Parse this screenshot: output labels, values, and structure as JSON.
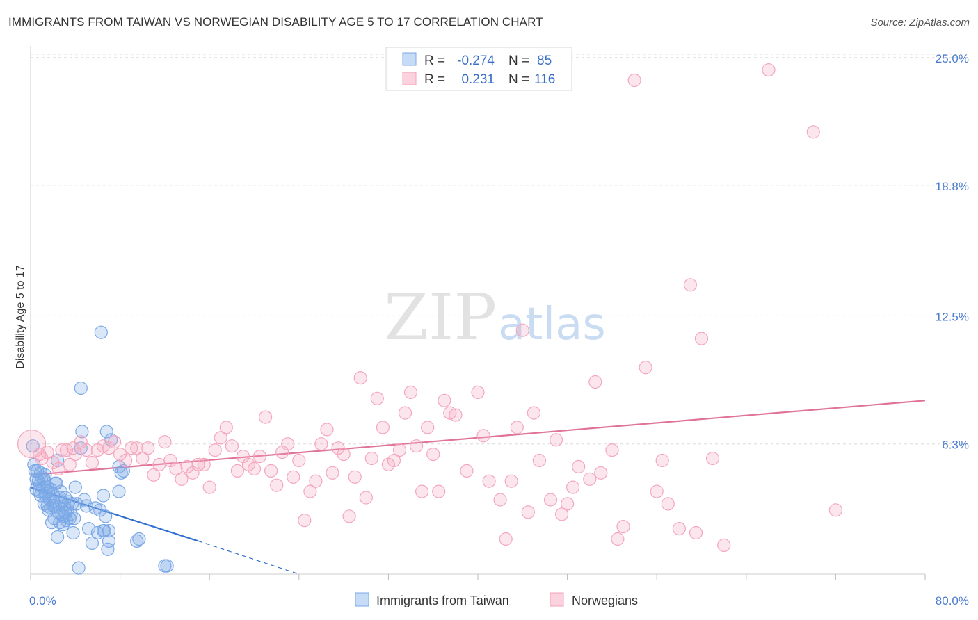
{
  "header": {
    "title": "IMMIGRANTS FROM TAIWAN VS NORWEGIAN DISABILITY AGE 5 TO 17 CORRELATION CHART",
    "source": "Source: ZipAtlas.com"
  },
  "watermark": {
    "part1": "ZIP",
    "part2": "atlas"
  },
  "legend": {
    "rows": [
      {
        "r_label": "R =",
        "r_value": "-0.274",
        "n_label": "N =",
        "n_value": "85",
        "color": "#a9c8f0"
      },
      {
        "r_label": "R =",
        "r_value": "0.231",
        "n_label": "N =",
        "n_value": "116",
        "color": "#f7b9cb"
      }
    ]
  },
  "bottom_legend": [
    {
      "label": "Immigrants from Taiwan",
      "color": "#a9c8f0"
    },
    {
      "label": "Norwegians",
      "color": "#f7b9cb"
    }
  ],
  "chart_data": {
    "type": "scatter",
    "ylabel": "Disability Age 5 to 17",
    "xlim": [
      0,
      80
    ],
    "ylim": [
      0,
      25.7
    ],
    "x_tick_labels": [
      "0.0%",
      "80.0%"
    ],
    "y_ticks": [
      6.3,
      12.5,
      18.8,
      25.0
    ],
    "y_tick_labels": [
      "6.3%",
      "12.5%",
      "18.8%",
      "25.0%"
    ],
    "grid": true,
    "legend_position": "top-center",
    "series": [
      {
        "name": "Immigrants from Taiwan",
        "color": "#7aa8e6",
        "line_color": "#2f6fd0",
        "trend": {
          "x": [
            0,
            15
          ],
          "y": [
            4.2,
            1.6
          ],
          "dashed_to": [
            24,
            0
          ]
        },
        "points": [
          [
            0.2,
            6.2
          ],
          [
            0.3,
            5.3
          ],
          [
            0.4,
            5.0
          ],
          [
            0.5,
            4.6
          ],
          [
            0.5,
            4.1
          ],
          [
            0.6,
            5.0
          ],
          [
            0.7,
            4.5
          ],
          [
            0.8,
            4.3
          ],
          [
            0.8,
            4.0
          ],
          [
            0.9,
            3.8
          ],
          [
            1.0,
            4.7
          ],
          [
            1.1,
            4.2
          ],
          [
            1.2,
            3.4
          ],
          [
            1.2,
            4.6
          ],
          [
            1.3,
            4.8
          ],
          [
            1.4,
            3.9
          ],
          [
            1.5,
            3.3
          ],
          [
            1.5,
            4.2
          ],
          [
            1.6,
            4.0
          ],
          [
            1.7,
            3.6
          ],
          [
            1.8,
            3.2
          ],
          [
            1.8,
            4.1
          ],
          [
            1.9,
            2.5
          ],
          [
            2.0,
            3.5
          ],
          [
            2.0,
            3.9
          ],
          [
            2.1,
            2.7
          ],
          [
            2.2,
            3.3
          ],
          [
            2.3,
            4.4
          ],
          [
            2.4,
            1.8
          ],
          [
            2.4,
            5.5
          ],
          [
            2.5,
            3.0
          ],
          [
            2.6,
            2.5
          ],
          [
            2.7,
            4.0
          ],
          [
            2.8,
            3.5
          ],
          [
            2.8,
            2.9
          ],
          [
            2.9,
            2.4
          ],
          [
            3.0,
            3.3
          ],
          [
            3.0,
            2.8
          ],
          [
            3.1,
            3.7
          ],
          [
            3.2,
            2.6
          ],
          [
            3.3,
            3.1
          ],
          [
            3.4,
            3.5
          ],
          [
            3.5,
            2.7
          ],
          [
            3.6,
            2.9
          ],
          [
            3.7,
            3.4
          ],
          [
            3.8,
            2.0
          ],
          [
            4.0,
            4.2
          ],
          [
            4.1,
            3.4
          ],
          [
            4.3,
            0.3
          ],
          [
            4.5,
            6.1
          ],
          [
            4.5,
            9.0
          ],
          [
            4.6,
            6.9
          ],
          [
            4.8,
            3.6
          ],
          [
            5.0,
            3.3
          ],
          [
            5.2,
            2.2
          ],
          [
            5.5,
            1.5
          ],
          [
            5.8,
            3.2
          ],
          [
            6.0,
            2.0
          ],
          [
            6.2,
            3.1
          ],
          [
            6.3,
            11.7
          ],
          [
            6.5,
            2.1
          ],
          [
            6.5,
            3.8
          ],
          [
            6.6,
            2.1
          ],
          [
            6.7,
            2.8
          ],
          [
            6.8,
            6.9
          ],
          [
            6.9,
            1.2
          ],
          [
            7.0,
            1.6
          ],
          [
            7.0,
            2.1
          ],
          [
            7.2,
            6.5
          ],
          [
            7.9,
            4.0
          ],
          [
            7.9,
            5.2
          ],
          [
            8.1,
            4.9
          ],
          [
            8.3,
            5.0
          ],
          [
            9.5,
            1.6
          ],
          [
            9.7,
            1.7
          ],
          [
            12.0,
            0.4
          ],
          [
            12.2,
            0.4
          ],
          [
            2.0,
            3.3
          ],
          [
            1.3,
            3.8
          ],
          [
            3.1,
            3.0
          ],
          [
            0.9,
            4.9
          ],
          [
            2.6,
            3.7
          ],
          [
            3.9,
            2.7
          ],
          [
            1.6,
            3.1
          ],
          [
            2.2,
            4.4
          ]
        ]
      },
      {
        "name": "Norwegians",
        "color": "#f4a6bd",
        "line_color": "#e07398",
        "trend": {
          "x": [
            0,
            80
          ],
          "y": [
            4.8,
            8.4
          ]
        },
        "points": [
          [
            0.1,
            6.3
          ],
          [
            0.8,
            5.8
          ],
          [
            1.0,
            5.6
          ],
          [
            1.5,
            5.9
          ],
          [
            2.0,
            5.4
          ],
          [
            2.5,
            5.1
          ],
          [
            2.8,
            6.0
          ],
          [
            3.2,
            6.0
          ],
          [
            3.5,
            5.3
          ],
          [
            3.8,
            6.1
          ],
          [
            4.0,
            5.8
          ],
          [
            4.5,
            6.4
          ],
          [
            5.0,
            6.0
          ],
          [
            5.5,
            5.4
          ],
          [
            6.0,
            6.0
          ],
          [
            6.5,
            6.2
          ],
          [
            7.0,
            6.1
          ],
          [
            7.5,
            6.4
          ],
          [
            8.0,
            5.8
          ],
          [
            8.5,
            5.5
          ],
          [
            9.0,
            6.1
          ],
          [
            9.5,
            6.1
          ],
          [
            10.0,
            5.6
          ],
          [
            10.5,
            6.1
          ],
          [
            11.0,
            4.8
          ],
          [
            11.5,
            5.3
          ],
          [
            12.0,
            6.4
          ],
          [
            12.5,
            5.5
          ],
          [
            13.0,
            5.1
          ],
          [
            13.5,
            4.6
          ],
          [
            14.0,
            5.2
          ],
          [
            14.5,
            4.9
          ],
          [
            15.0,
            5.3
          ],
          [
            15.5,
            5.3
          ],
          [
            16.0,
            4.2
          ],
          [
            16.5,
            6.0
          ],
          [
            17.0,
            6.6
          ],
          [
            17.5,
            7.1
          ],
          [
            18.0,
            6.2
          ],
          [
            18.5,
            5.0
          ],
          [
            19.0,
            5.7
          ],
          [
            19.5,
            5.3
          ],
          [
            20.0,
            5.1
          ],
          [
            20.5,
            5.7
          ],
          [
            21.0,
            7.6
          ],
          [
            21.5,
            5.0
          ],
          [
            22.0,
            4.3
          ],
          [
            22.5,
            5.9
          ],
          [
            23.0,
            6.3
          ],
          [
            23.5,
            4.7
          ],
          [
            24.0,
            5.5
          ],
          [
            24.5,
            2.6
          ],
          [
            25.0,
            4.0
          ],
          [
            25.5,
            4.5
          ],
          [
            26.0,
            6.3
          ],
          [
            26.5,
            7.0
          ],
          [
            27.0,
            4.9
          ],
          [
            27.5,
            6.1
          ],
          [
            28.0,
            5.8
          ],
          [
            28.5,
            2.8
          ],
          [
            29.0,
            4.7
          ],
          [
            29.5,
            9.5
          ],
          [
            30.0,
            3.7
          ],
          [
            30.5,
            5.6
          ],
          [
            31.0,
            8.5
          ],
          [
            31.5,
            7.1
          ],
          [
            32.0,
            5.3
          ],
          [
            32.5,
            5.5
          ],
          [
            33.0,
            6.0
          ],
          [
            33.5,
            7.8
          ],
          [
            34.0,
            8.8
          ],
          [
            34.5,
            6.2
          ],
          [
            35.0,
            4.0
          ],
          [
            35.5,
            7.1
          ],
          [
            36.0,
            5.8
          ],
          [
            36.5,
            4.0
          ],
          [
            37.0,
            8.4
          ],
          [
            37.5,
            7.8
          ],
          [
            38.0,
            7.7
          ],
          [
            39.0,
            5.0
          ],
          [
            40.0,
            8.8
          ],
          [
            40.5,
            6.7
          ],
          [
            41.0,
            4.5
          ],
          [
            42.0,
            3.6
          ],
          [
            42.5,
            1.7
          ],
          [
            43.0,
            4.5
          ],
          [
            43.5,
            7.1
          ],
          [
            44.0,
            11.8
          ],
          [
            44.5,
            3.0
          ],
          [
            45.0,
            7.8
          ],
          [
            45.5,
            5.5
          ],
          [
            46.5,
            3.6
          ],
          [
            47.0,
            6.5
          ],
          [
            47.5,
            2.9
          ],
          [
            48.0,
            3.4
          ],
          [
            48.5,
            4.2
          ],
          [
            49.0,
            5.2
          ],
          [
            50.0,
            4.6
          ],
          [
            50.5,
            9.3
          ],
          [
            51.0,
            4.9
          ],
          [
            52.0,
            6.0
          ],
          [
            52.5,
            1.7
          ],
          [
            53.0,
            2.3
          ],
          [
            54.0,
            23.9
          ],
          [
            55.0,
            10.0
          ],
          [
            56.0,
            4.0
          ],
          [
            56.5,
            5.5
          ],
          [
            57.0,
            3.4
          ],
          [
            58.0,
            2.2
          ],
          [
            59.0,
            14.0
          ],
          [
            59.5,
            2.0
          ],
          [
            60.0,
            11.4
          ],
          [
            61.0,
            5.6
          ],
          [
            62.0,
            1.4
          ],
          [
            66.0,
            24.4
          ],
          [
            70.0,
            21.4
          ],
          [
            72.0,
            3.1
          ]
        ]
      }
    ]
  }
}
